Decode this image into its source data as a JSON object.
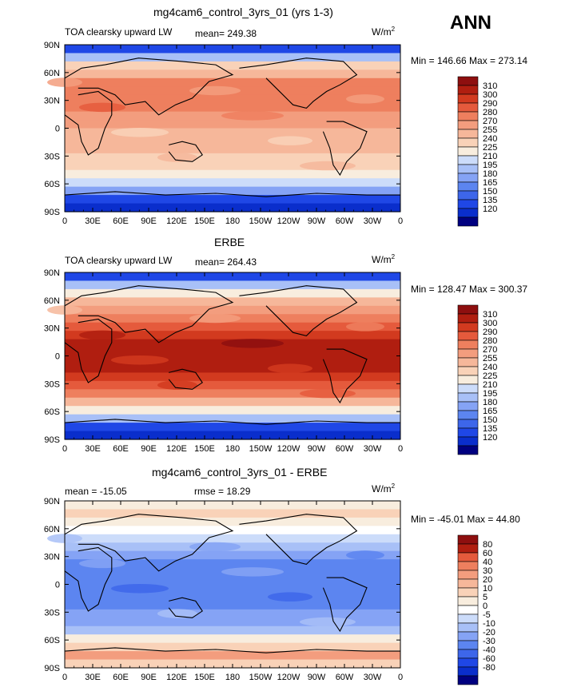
{
  "season_label": "ANN",
  "units": {
    "text": "W/m",
    "sup": "2"
  },
  "xticks": [
    "0",
    "30E",
    "60E",
    "90E",
    "120E",
    "150E",
    "180",
    "150W",
    "120W",
    "90W",
    "60W",
    "30W",
    "0"
  ],
  "yticks": [
    "90N",
    "60N",
    "30N",
    "0",
    "30S",
    "60S",
    "90S"
  ],
  "abs_colors": [
    "#000080",
    "#0A2ECC",
    "#1F47E6",
    "#3D66EA",
    "#5C85F0",
    "#85A3F5",
    "#A8C0F7",
    "#CCDCFA",
    "#F8EDDE",
    "#F9D2B8",
    "#F6B79A",
    "#F39D7E",
    "#EE7F5E",
    "#E55A3C",
    "#D23A1F",
    "#B01E10",
    "#8E0F0F"
  ],
  "diff_colors": [
    "#000080",
    "#0A2ECC",
    "#1F47E6",
    "#3D66EA",
    "#5C85F0",
    "#85A3F5",
    "#A8C0F7",
    "#CCDCFA",
    "#FFFFFF",
    "#F8EDDE",
    "#F9D2B8",
    "#F6B79A",
    "#F39D7E",
    "#EE7F5E",
    "#E55A3C",
    "#B01E10",
    "#8E0F0F"
  ],
  "panels": [
    {
      "title": "mg4cam6_control_3yrs_01 (yrs 1-3)",
      "variable": "TOA clearsky upward LW",
      "mean_text": "mean= 249.38",
      "rmse_text": "",
      "minmax": "Min = 146.66 Max = 273.14",
      "legend_labels": [
        "310",
        "300",
        "290",
        "280",
        "270",
        "255",
        "240",
        "225",
        "210",
        "195",
        "180",
        "165",
        "150",
        "135",
        "120"
      ],
      "palette": "abs",
      "zonal_profile": [
        2,
        6,
        9,
        10,
        12,
        12,
        12,
        12,
        11,
        11,
        10,
        10,
        10,
        9,
        9,
        8,
        7,
        5,
        2,
        1
      ]
    },
    {
      "title": "ERBE",
      "variable": "TOA clearsky upward LW",
      "mean_text": "mean= 264.43",
      "rmse_text": "",
      "minmax": "Min = 128.47 Max = 300.37",
      "legend_labels": [
        "310",
        "300",
        "290",
        "280",
        "270",
        "255",
        "240",
        "225",
        "210",
        "195",
        "180",
        "165",
        "150",
        "135",
        "120"
      ],
      "palette": "abs",
      "zonal_profile": [
        2,
        6,
        8,
        10,
        11,
        12,
        13,
        14,
        15,
        15,
        15,
        15,
        14,
        13,
        12,
        10,
        8,
        6,
        2,
        1
      ]
    },
    {
      "title": "mg4cam6_control_3yrs_01 - ERBE",
      "variable": "",
      "mean_text": "mean = -15.05",
      "rmse_text": "rmse =  18.29",
      "minmax": "Min = -45.01 Max =  44.80",
      "legend_labels": [
        "80",
        "60",
        "40",
        "30",
        "20",
        "10",
        "5",
        "0",
        "-5",
        "-10",
        "-20",
        "-30",
        "-40",
        "-60",
        "-80"
      ],
      "palette": "diff",
      "zonal_profile": [
        9,
        10,
        9,
        8,
        7,
        6,
        5,
        4,
        4,
        4,
        4,
        4,
        4,
        5,
        5,
        6,
        9,
        10,
        12,
        10
      ]
    }
  ]
}
